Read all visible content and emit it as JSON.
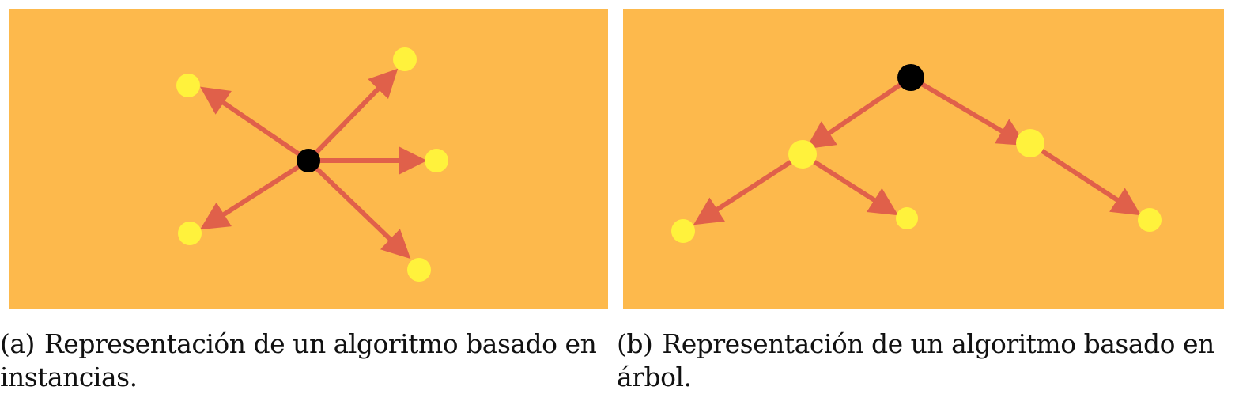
{
  "colors": {
    "panel_background": "#fdb94c",
    "arrow": "#e0604a",
    "leaf_node": "#fff23c",
    "center_node": "#000000"
  },
  "figure_a": {
    "label": "(a)",
    "caption": "Representación de un algoritmo basado en instancias."
  },
  "figure_b": {
    "label": "(b)",
    "caption": "Representación de un algoritmo basado en árbol."
  }
}
